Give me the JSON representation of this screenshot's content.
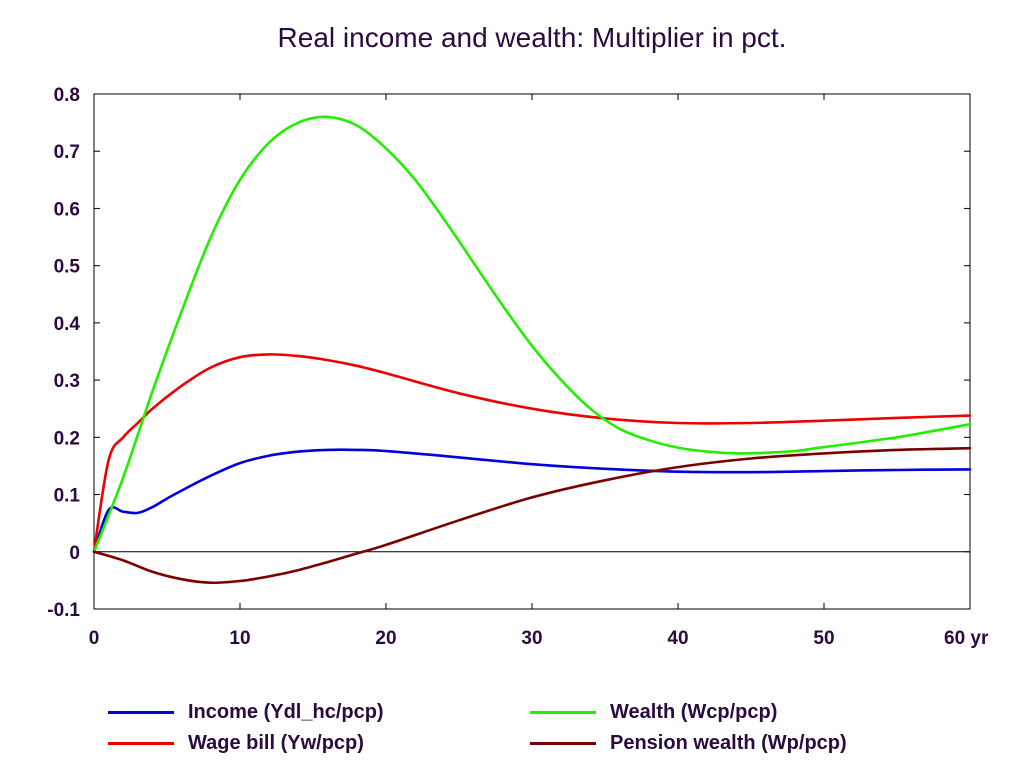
{
  "chart_data": {
    "type": "line",
    "title": "Real income and wealth: Multiplier in pct.",
    "xlabel": "",
    "ylabel": "",
    "xlim": [
      0,
      60
    ],
    "ylim": [
      -0.1,
      0.8
    ],
    "x_ticks": [
      "0",
      "10",
      "20",
      "30",
      "40",
      "50",
      "60 yr"
    ],
    "y_ticks": [
      "-0.1",
      "0",
      "0.1",
      "0.2",
      "0.3",
      "0.4",
      "0.5",
      "0.6",
      "0.7",
      "0.8"
    ],
    "grid": false,
    "zero_line": true,
    "legend_position": "bottom",
    "series": [
      {
        "name": "Income (Ydl_hc/pcp)",
        "color": "#0000dd",
        "x": [
          0,
          1,
          2,
          3,
          4,
          5,
          6,
          8,
          10,
          12,
          14,
          16,
          18,
          20,
          25,
          30,
          35,
          40,
          45,
          50,
          55,
          60
        ],
        "y": [
          0,
          0.073,
          0.07,
          0.068,
          0.078,
          0.093,
          0.107,
          0.133,
          0.155,
          0.168,
          0.175,
          0.178,
          0.178,
          0.176,
          0.165,
          0.153,
          0.145,
          0.14,
          0.139,
          0.141,
          0.143,
          0.144
        ]
      },
      {
        "name": "Wage bill (Yw/pcp)",
        "color": "#ee0000",
        "x": [
          0,
          1,
          2,
          3,
          4,
          6,
          8,
          10,
          12,
          14,
          16,
          18,
          20,
          25,
          30,
          35,
          40,
          45,
          50,
          55,
          60
        ],
        "y": [
          0,
          0.16,
          0.2,
          0.225,
          0.25,
          0.29,
          0.322,
          0.34,
          0.345,
          0.342,
          0.335,
          0.325,
          0.312,
          0.277,
          0.25,
          0.233,
          0.225,
          0.225,
          0.229,
          0.234,
          0.238
        ]
      },
      {
        "name": "Wealth (Wcp/pcp)",
        "color": "#22ee00",
        "x": [
          0,
          2,
          4,
          6,
          8,
          10,
          12,
          14,
          16,
          18,
          20,
          22,
          24,
          26,
          28,
          30,
          32,
          34,
          36,
          38,
          40,
          42,
          44,
          46,
          48,
          50,
          55,
          60
        ],
        "y": [
          0,
          0.13,
          0.28,
          0.42,
          0.55,
          0.65,
          0.715,
          0.75,
          0.76,
          0.745,
          0.705,
          0.65,
          0.58,
          0.505,
          0.43,
          0.36,
          0.3,
          0.25,
          0.215,
          0.195,
          0.182,
          0.175,
          0.172,
          0.173,
          0.176,
          0.183,
          0.2,
          0.223
        ]
      },
      {
        "name": "Pension wealth (Wp/pcp)",
        "color": "#7a0000",
        "x": [
          0,
          2,
          4,
          6,
          8,
          10,
          12,
          14,
          16,
          18,
          20,
          25,
          30,
          35,
          40,
          45,
          50,
          55,
          60
        ],
        "y": [
          0,
          -0.015,
          -0.035,
          -0.048,
          -0.054,
          -0.051,
          -0.043,
          -0.032,
          -0.018,
          -0.003,
          0.012,
          0.055,
          0.095,
          0.125,
          0.148,
          0.163,
          0.172,
          0.178,
          0.181
        ]
      }
    ]
  }
}
